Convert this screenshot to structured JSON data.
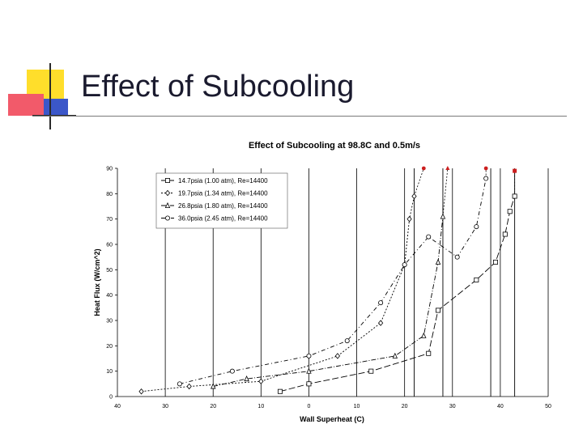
{
  "slide": {
    "title": "Effect of Subcooling"
  },
  "colors": {
    "deco_yellow": "#ffde2b",
    "deco_red": "#f25a6a",
    "deco_blue": "#3b57c9",
    "rule": "#7a7a7a",
    "marker_red": "#cc1f1f"
  },
  "chart_data": {
    "type": "line",
    "title": "Effect of Subcooling at 98.8C and 0.5m/s",
    "xlabel": "Wall Superheat (C)",
    "ylabel": "Heat Flux (W/cm^2)",
    "xlim": [
      -40,
      50
    ],
    "ylim": [
      0,
      90
    ],
    "xticks": [
      -40,
      -30,
      -20,
      -10,
      0,
      10,
      20,
      30,
      40,
      50
    ],
    "xtick_labels": [
      "40",
      "30",
      "20",
      "10",
      "0",
      "10",
      "20",
      "30",
      "40",
      "50"
    ],
    "yticks": [
      0,
      10,
      20,
      30,
      40,
      50,
      60,
      70,
      80,
      90
    ],
    "ytick_labels": [
      "0",
      "10",
      "20",
      "30",
      "40",
      "50",
      "60",
      "70",
      "80",
      "90"
    ],
    "legend_position": "top-left",
    "series": [
      {
        "name": "14.7psia (1.00 atm), Re=14400",
        "marker": "square",
        "dash": "8,3",
        "asymptote_x": 43,
        "x": [
          -6,
          0,
          13,
          25,
          27,
          35,
          39,
          41,
          42,
          43
        ],
        "y": [
          2,
          5,
          10,
          17,
          34,
          46,
          53,
          64,
          73,
          79
        ],
        "burnout": {
          "x": 43,
          "y": 89
        }
      },
      {
        "name": "19.7psia (1.34 atm), Re=14400",
        "marker": "diamond",
        "dash": "2,2",
        "asymptote_x": 22,
        "x": [
          -35,
          -25,
          -10,
          6,
          15,
          20,
          21,
          22
        ],
        "y": [
          2,
          4,
          6,
          16,
          29,
          52,
          70,
          79
        ],
        "burnout": {
          "x": 24,
          "y": 90
        }
      },
      {
        "name": "26.8psia (1.80 atm), Re=14400",
        "marker": "triangle",
        "dash": "6,2,1,2",
        "asymptote_x": 28,
        "x": [
          -20,
          -13,
          0,
          18,
          24,
          27,
          28
        ],
        "y": [
          4,
          7,
          10,
          16,
          24,
          53,
          71
        ],
        "burnout": {
          "x": 29,
          "y": 90
        }
      },
      {
        "name": "36.0psia (2.45 atm), Re=14400",
        "marker": "circle",
        "dash": "5,3,1,3",
        "asymptote_x": 38,
        "x": [
          -27,
          -16,
          0,
          8,
          15,
          20,
          25,
          31,
          35,
          37
        ],
        "y": [
          5,
          10,
          16,
          22,
          37,
          52,
          63,
          55,
          67,
          86
        ],
        "burnout": {
          "x": 37,
          "y": 90
        }
      }
    ]
  }
}
